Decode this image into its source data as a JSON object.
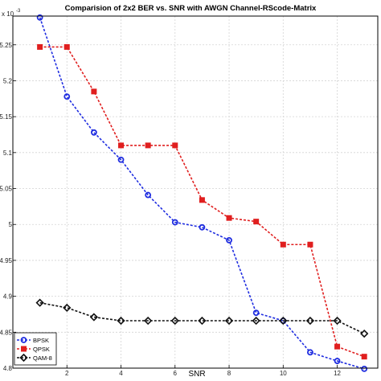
{
  "chart_data": {
    "type": "line",
    "title": "Comparision of 2x2 BER vs. SNR  with AWGN Channel-RScode-Matrix",
    "xlabel": "SNR",
    "ylabel": "",
    "y_exponent": "x 10^-3",
    "xlim": [
      0,
      13.5
    ],
    "ylim": [
      4.8,
      5.29
    ],
    "xticks": [
      2,
      4,
      6,
      8,
      10,
      12
    ],
    "yticks": [
      4.8,
      4.85,
      4.9,
      4.95,
      5.0,
      5.05,
      5.1,
      5.15,
      5.2,
      5.25
    ],
    "ytick_labels": [
      "4.8",
      "4.85",
      "4.9",
      "4.95",
      "5",
      "5.05",
      "5.1",
      "5.15",
      "5.2",
      "5.25"
    ],
    "grid": true,
    "legend_position": "bottom-left",
    "series": [
      {
        "name": "BPSK",
        "color": "#1f2de0",
        "marker": "circle",
        "x": [
          1,
          2,
          3,
          4,
          5,
          6,
          7,
          8,
          9,
          10,
          11,
          12,
          13
        ],
        "y": [
          5.288,
          5.178,
          5.128,
          5.09,
          5.041,
          5.003,
          4.996,
          4.978,
          4.877,
          4.866,
          4.822,
          4.81,
          4.799
        ]
      },
      {
        "name": "QPSK",
        "color": "#e01f1f",
        "marker": "square",
        "x": [
          1,
          2,
          3,
          4,
          5,
          6,
          7,
          8,
          9,
          10,
          11,
          12,
          13
        ],
        "y": [
          5.247,
          5.247,
          5.185,
          5.11,
          5.11,
          5.11,
          5.034,
          5.009,
          5.004,
          4.972,
          4.972,
          4.83,
          4.816
        ]
      },
      {
        "name": "QAM-8",
        "color": "#111111",
        "marker": "diamond",
        "x": [
          1,
          2,
          3,
          4,
          5,
          6,
          7,
          8,
          9,
          10,
          11,
          12,
          13
        ],
        "y": [
          4.891,
          4.884,
          4.871,
          4.866,
          4.866,
          4.866,
          4.866,
          4.866,
          4.866,
          4.866,
          4.866,
          4.866,
          4.848
        ]
      }
    ]
  }
}
